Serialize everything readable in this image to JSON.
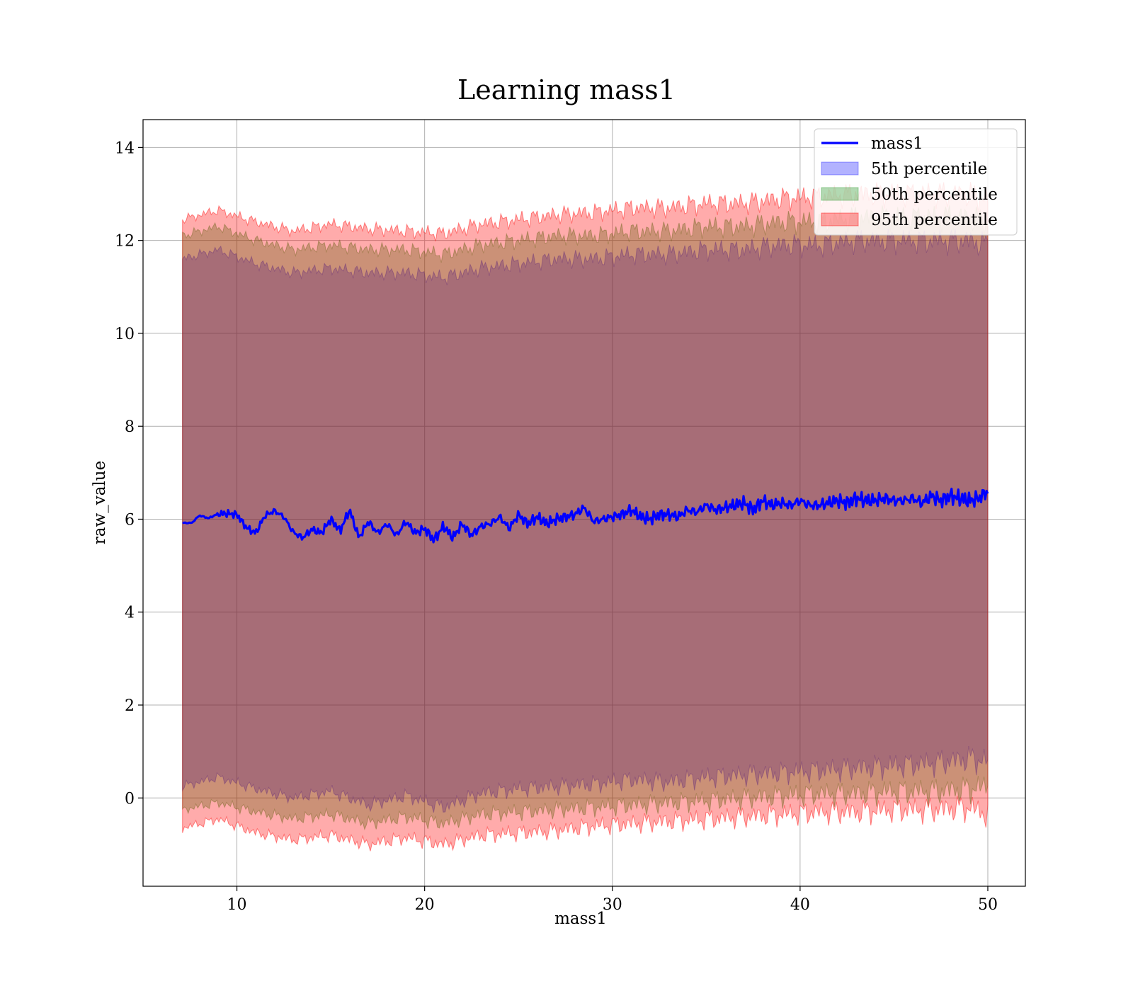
{
  "chart_data": {
    "type": "area",
    "title": "Learning mass1",
    "xlabel": "mass1",
    "ylabel": "raw_value",
    "xlim": [
      5,
      52
    ],
    "ylim": [
      -1.9,
      14.6
    ],
    "xticks": [
      10,
      20,
      30,
      40,
      50
    ],
    "yticks": [
      0,
      2,
      4,
      6,
      8,
      10,
      12,
      14
    ],
    "grid": true,
    "legend_position": "top-right",
    "x_range": [
      7.1,
      50.0
    ],
    "series": [
      {
        "name": "mass1",
        "kind": "line",
        "color": "#0000ff",
        "x": [
          7.1,
          7.6,
          8.0,
          8.5,
          9.0,
          9.5,
          10.0,
          10.5,
          11.0,
          11.5,
          12.0,
          12.5,
          13.0,
          13.5,
          14.0,
          14.5,
          15.0,
          15.5,
          16.0,
          16.5,
          17.0,
          17.5,
          18.0,
          18.5,
          19.0,
          19.5,
          20.0,
          20.5,
          21.0,
          21.5,
          22.0,
          22.5,
          23.0,
          23.5,
          24.0,
          24.5,
          25.0,
          25.5,
          26.0,
          26.5,
          27.0,
          27.5,
          28.0,
          28.5,
          29.0,
          29.5,
          30.0,
          30.5,
          31.0,
          31.5,
          32.0,
          32.5,
          33.0,
          33.5,
          34.0,
          34.5,
          35.0,
          35.5,
          36.0,
          36.5,
          37.0,
          37.5,
          38.0,
          38.5,
          39.0,
          39.5,
          40.0,
          40.5,
          41.0,
          41.5,
          42.0,
          42.5,
          43.0,
          43.5,
          44.0,
          44.5,
          45.0,
          45.5,
          46.0,
          46.5,
          47.0,
          47.5,
          48.0,
          48.5,
          49.0,
          49.5,
          50.0
        ],
        "values": [
          5.92,
          5.92,
          6.08,
          6.02,
          6.12,
          6.12,
          6.1,
          5.82,
          5.7,
          6.08,
          6.18,
          6.05,
          5.72,
          5.6,
          5.78,
          5.7,
          6.0,
          5.75,
          6.2,
          5.6,
          5.95,
          5.7,
          5.9,
          5.65,
          5.95,
          5.7,
          5.8,
          5.55,
          5.85,
          5.6,
          5.9,
          5.65,
          5.85,
          5.9,
          6.05,
          5.8,
          6.1,
          5.9,
          6.05,
          5.9,
          6.0,
          6.05,
          6.1,
          6.25,
          5.95,
          6.0,
          6.05,
          6.1,
          6.2,
          6.05,
          6.0,
          6.1,
          6.1,
          6.05,
          6.2,
          6.15,
          6.3,
          6.2,
          6.25,
          6.3,
          6.35,
          6.2,
          6.4,
          6.3,
          6.35,
          6.3,
          6.4,
          6.3,
          6.3,
          6.35,
          6.4,
          6.35,
          6.45,
          6.4,
          6.4,
          6.45,
          6.4,
          6.4,
          6.45,
          6.35,
          6.5,
          6.4,
          6.5,
          6.45,
          6.4,
          6.45,
          6.6
        ]
      },
      {
        "name": "5th percentile",
        "kind": "band",
        "color": "#0000ff",
        "x": [
          7.1,
          9.0,
          11.0,
          13.0,
          15.0,
          17.0,
          19.0,
          21.0,
          23.0,
          25.0,
          27.0,
          29.0,
          31.0,
          33.0,
          35.0,
          37.0,
          39.0,
          41.0,
          43.0,
          45.0,
          47.0,
          49.0,
          50.0
        ],
        "lower": [
          0.25,
          0.45,
          0.2,
          0.0,
          0.15,
          -0.15,
          0.05,
          -0.2,
          0.1,
          0.2,
          0.25,
          0.3,
          0.4,
          0.35,
          0.45,
          0.5,
          0.55,
          0.6,
          0.65,
          0.7,
          0.75,
          0.85,
          0.8
        ],
        "upper": [
          11.6,
          11.8,
          11.5,
          11.3,
          11.4,
          11.3,
          11.3,
          11.2,
          11.4,
          11.5,
          11.6,
          11.6,
          11.7,
          11.7,
          11.8,
          11.8,
          11.9,
          11.9,
          12.0,
          12.0,
          12.0,
          12.0,
          11.9
        ]
      },
      {
        "name": "50th percentile",
        "kind": "band",
        "color": "#008000",
        "x": [
          7.1,
          9.0,
          11.0,
          13.0,
          15.0,
          17.0,
          19.0,
          21.0,
          23.0,
          25.0,
          27.0,
          29.0,
          31.0,
          33.0,
          35.0,
          37.0,
          39.0,
          41.0,
          43.0,
          45.0,
          47.0,
          49.0,
          50.0
        ],
        "lower": [
          -0.25,
          -0.1,
          -0.3,
          -0.45,
          -0.35,
          -0.55,
          -0.4,
          -0.55,
          -0.35,
          -0.3,
          -0.25,
          -0.2,
          -0.15,
          -0.1,
          -0.05,
          0.0,
          0.05,
          0.1,
          0.1,
          0.15,
          0.15,
          0.2,
          0.25
        ],
        "upper": [
          12.1,
          12.3,
          12.0,
          11.8,
          11.9,
          11.8,
          11.8,
          11.7,
          11.9,
          12.0,
          12.1,
          12.1,
          12.2,
          12.2,
          12.3,
          12.3,
          12.4,
          12.4,
          12.5,
          12.5,
          12.5,
          12.5,
          12.4
        ]
      },
      {
        "name": "95th percentile",
        "kind": "band",
        "color": "#ff0000",
        "x": [
          7.1,
          9.0,
          11.0,
          13.0,
          15.0,
          17.0,
          19.0,
          21.0,
          23.0,
          25.0,
          27.0,
          29.0,
          31.0,
          33.0,
          35.0,
          37.0,
          39.0,
          41.0,
          43.0,
          45.0,
          47.0,
          49.0,
          50.0
        ],
        "lower": [
          -0.65,
          -0.45,
          -0.75,
          -0.9,
          -0.8,
          -1.0,
          -0.85,
          -1.0,
          -0.8,
          -0.75,
          -0.7,
          -0.6,
          -0.55,
          -0.5,
          -0.45,
          -0.4,
          -0.35,
          -0.3,
          -0.3,
          -0.25,
          -0.25,
          -0.2,
          -0.35
        ],
        "upper": [
          12.45,
          12.65,
          12.4,
          12.2,
          12.35,
          12.25,
          12.2,
          12.15,
          12.35,
          12.45,
          12.55,
          12.6,
          12.7,
          12.7,
          12.8,
          12.8,
          12.9,
          12.95,
          13.0,
          13.0,
          13.0,
          13.0,
          12.9
        ]
      }
    ]
  }
}
